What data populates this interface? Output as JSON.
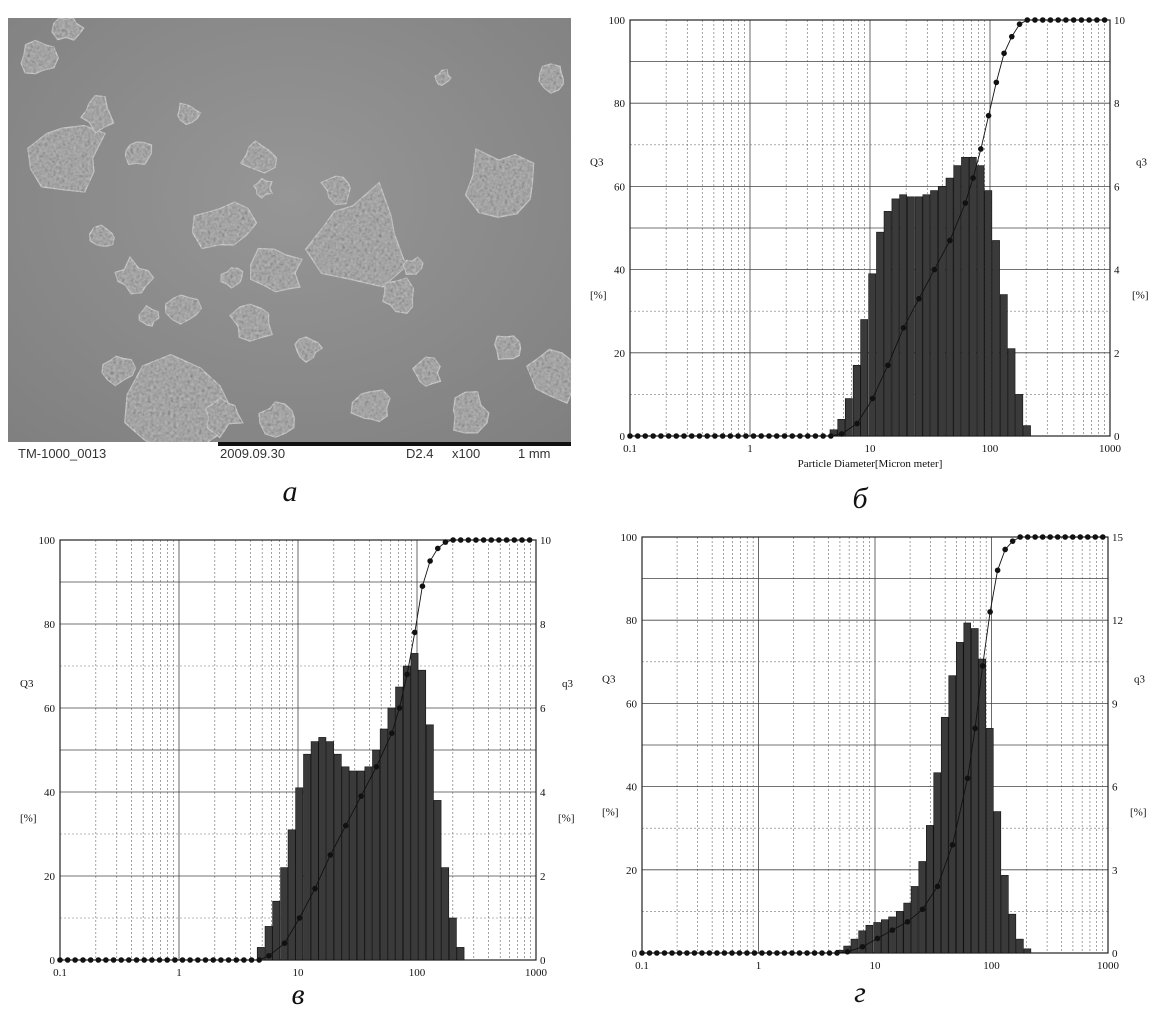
{
  "sem": {
    "id_label": "TM-1000_0013",
    "date_label": "2009.09.30",
    "mode_label": "D2.4",
    "mag_label": "x100",
    "scale_label": "1 mm"
  },
  "captions": [
    "а",
    "б",
    "в",
    "г"
  ],
  "chart_data": [
    {
      "panel": "б",
      "type": "bar",
      "xlabel": "Particle Diameter[Micron meter]",
      "ylabel_left": "Q3",
      "ylabel_left_unit": "[%]",
      "ylabel_right": "q3",
      "ylabel_right_unit": "[%]",
      "xscale": "log",
      "xlim": [
        0.1,
        1000
      ],
      "xticks": [
        "0.1",
        "1",
        "10",
        "100",
        "1000"
      ],
      "ylim_left": [
        0,
        100
      ],
      "yticks_left": [
        "0",
        "20",
        "40",
        "60",
        "80",
        "100"
      ],
      "ylim_right": [
        0,
        10
      ],
      "yticks_right": [
        "0",
        "2",
        "4",
        "6",
        "8",
        "10"
      ],
      "grid": true,
      "q3_bars": [
        {
          "x": 5.0,
          "v": 0.15
        },
        {
          "x": 5.8,
          "v": 0.4
        },
        {
          "x": 6.7,
          "v": 0.9
        },
        {
          "x": 7.8,
          "v": 1.7
        },
        {
          "x": 9.0,
          "v": 2.8
        },
        {
          "x": 10.5,
          "v": 3.9
        },
        {
          "x": 12.2,
          "v": 4.9
        },
        {
          "x": 14.1,
          "v": 5.4
        },
        {
          "x": 16.4,
          "v": 5.7
        },
        {
          "x": 19.0,
          "v": 5.8
        },
        {
          "x": 22.0,
          "v": 5.75
        },
        {
          "x": 25.6,
          "v": 5.75
        },
        {
          "x": 29.7,
          "v": 5.8
        },
        {
          "x": 34.4,
          "v": 5.9
        },
        {
          "x": 39.9,
          "v": 6.0
        },
        {
          "x": 46.3,
          "v": 6.2
        },
        {
          "x": 53.7,
          "v": 6.5
        },
        {
          "x": 62.3,
          "v": 6.7
        },
        {
          "x": 72.3,
          "v": 6.7
        },
        {
          "x": 83.9,
          "v": 6.5
        },
        {
          "x": 97.3,
          "v": 5.9
        },
        {
          "x": 112.9,
          "v": 4.7
        },
        {
          "x": 131.0,
          "v": 3.4
        },
        {
          "x": 151.9,
          "v": 2.1
        },
        {
          "x": 176.3,
          "v": 1.0
        },
        {
          "x": 204.5,
          "v": 0.25
        }
      ],
      "Q3_curve": {
        "x": [
          0.1,
          0.116,
          0.134,
          0.156,
          0.181,
          0.21,
          0.243,
          0.282,
          0.327,
          0.379,
          0.44,
          0.51,
          0.592,
          0.686,
          0.796,
          0.924,
          1.07,
          1.24,
          1.44,
          1.67,
          1.94,
          2.25,
          2.61,
          3.03,
          3.51,
          4.07,
          4.72,
          5.8,
          7.8,
          10.5,
          14.1,
          19.0,
          25.6,
          34.4,
          46.3,
          62.3,
          72.3,
          83.9,
          97.3,
          112.9,
          131.0,
          151.9,
          176.3,
          204.5,
          237,
          275,
          319,
          370,
          429,
          498,
          578,
          670,
          778,
          902
        ],
        "y": [
          0,
          0,
          0,
          0,
          0,
          0,
          0,
          0,
          0,
          0,
          0,
          0,
          0,
          0,
          0,
          0,
          0,
          0,
          0,
          0,
          0,
          0,
          0,
          0,
          0,
          0,
          0,
          0.5,
          3,
          9,
          17,
          26,
          33,
          40,
          47,
          56,
          62,
          69,
          77,
          85,
          92,
          96,
          99,
          100,
          100,
          100,
          100,
          100,
          100,
          100,
          100,
          100,
          100,
          100
        ]
      }
    },
    {
      "panel": "в",
      "type": "bar",
      "xlabel": "Particle Diameter[Micron meter]",
      "ylabel_left": "Q3",
      "ylabel_left_unit": "[%]",
      "ylabel_right": "q3",
      "ylabel_right_unit": "[%]",
      "xscale": "log",
      "xlim": [
        0.1,
        1000
      ],
      "xticks": [
        "0.1",
        "1",
        "10",
        "100",
        "1000"
      ],
      "ylim_left": [
        0,
        100
      ],
      "yticks_left": [
        "0",
        "20",
        "40",
        "60",
        "80",
        "100"
      ],
      "ylim_right": [
        0,
        10
      ],
      "yticks_right": [
        "0",
        "2",
        "4",
        "6",
        "8",
        "10"
      ],
      "grid": true,
      "q3_bars": [
        {
          "x": 4.9,
          "v": 0.3
        },
        {
          "x": 5.7,
          "v": 0.8
        },
        {
          "x": 6.6,
          "v": 1.4
        },
        {
          "x": 7.7,
          "v": 2.2
        },
        {
          "x": 8.9,
          "v": 3.1
        },
        {
          "x": 10.3,
          "v": 4.1
        },
        {
          "x": 12.0,
          "v": 4.9
        },
        {
          "x": 13.9,
          "v": 5.2
        },
        {
          "x": 16.1,
          "v": 5.3
        },
        {
          "x": 18.7,
          "v": 5.2
        },
        {
          "x": 21.7,
          "v": 4.9
        },
        {
          "x": 25.2,
          "v": 4.6
        },
        {
          "x": 29.2,
          "v": 4.5
        },
        {
          "x": 33.9,
          "v": 4.5
        },
        {
          "x": 39.3,
          "v": 4.6
        },
        {
          "x": 45.6,
          "v": 5.0
        },
        {
          "x": 52.9,
          "v": 5.5
        },
        {
          "x": 61.4,
          "v": 6.0
        },
        {
          "x": 71.2,
          "v": 6.5
        },
        {
          "x": 82.6,
          "v": 7.0
        },
        {
          "x": 95.8,
          "v": 7.3
        },
        {
          "x": 111.1,
          "v": 6.9
        },
        {
          "x": 128.9,
          "v": 5.6
        },
        {
          "x": 149.5,
          "v": 3.8
        },
        {
          "x": 173.4,
          "v": 2.2
        },
        {
          "x": 201.1,
          "v": 1.0
        },
        {
          "x": 233.3,
          "v": 0.3
        }
      ],
      "Q3_curve": {
        "x": [
          0.1,
          0.116,
          0.134,
          0.156,
          0.181,
          0.21,
          0.243,
          0.282,
          0.327,
          0.379,
          0.44,
          0.51,
          0.592,
          0.686,
          0.796,
          0.924,
          1.07,
          1.24,
          1.44,
          1.67,
          1.94,
          2.25,
          2.61,
          3.03,
          3.51,
          4.07,
          4.72,
          5.7,
          7.7,
          10.3,
          13.9,
          18.7,
          25.2,
          33.9,
          45.6,
          61.4,
          71.2,
          82.6,
          95.8,
          111.1,
          128.9,
          149.5,
          173.4,
          201.1,
          233,
          270,
          313,
          363,
          421,
          488,
          566,
          657,
          762,
          884
        ],
        "y": [
          0,
          0,
          0,
          0,
          0,
          0,
          0,
          0,
          0,
          0,
          0,
          0,
          0,
          0,
          0,
          0,
          0,
          0,
          0,
          0,
          0,
          0,
          0,
          0,
          0,
          0,
          0,
          1,
          4,
          10,
          17,
          25,
          32,
          39,
          46,
          54,
          60,
          68,
          78,
          89,
          95,
          98,
          99.5,
          100,
          100,
          100,
          100,
          100,
          100,
          100,
          100,
          100,
          100,
          100
        ]
      }
    },
    {
      "panel": "г",
      "type": "bar",
      "xlabel": "Particle Diameter[Micron meter]",
      "ylabel_left": "Q3",
      "ylabel_left_unit": "[%]",
      "ylabel_right": "q3",
      "ylabel_right_unit": "[%]",
      "xscale": "log",
      "xlim": [
        0.1,
        1000
      ],
      "xticks": [
        "0.1",
        "1",
        "10",
        "100",
        "1000"
      ],
      "ylim_left": [
        0,
        100
      ],
      "yticks_left": [
        "0",
        "20",
        "40",
        "60",
        "80",
        "100"
      ],
      "ylim_right": [
        0,
        15
      ],
      "yticks_right": [
        "0",
        "3",
        "6",
        "9",
        "12",
        "15"
      ],
      "grid": true,
      "q3_bars": [
        {
          "x": 5.0,
          "v": 0.1
        },
        {
          "x": 5.8,
          "v": 0.25
        },
        {
          "x": 6.7,
          "v": 0.5
        },
        {
          "x": 7.8,
          "v": 0.8
        },
        {
          "x": 9.0,
          "v": 1.0
        },
        {
          "x": 10.5,
          "v": 1.1
        },
        {
          "x": 12.2,
          "v": 1.2
        },
        {
          "x": 14.1,
          "v": 1.3
        },
        {
          "x": 16.4,
          "v": 1.5
        },
        {
          "x": 19.0,
          "v": 1.8
        },
        {
          "x": 22.0,
          "v": 2.4
        },
        {
          "x": 25.6,
          "v": 3.3
        },
        {
          "x": 29.7,
          "v": 4.6
        },
        {
          "x": 34.4,
          "v": 6.5
        },
        {
          "x": 39.9,
          "v": 8.5
        },
        {
          "x": 46.3,
          "v": 10.0
        },
        {
          "x": 53.7,
          "v": 11.2
        },
        {
          "x": 62.3,
          "v": 11.9
        },
        {
          "x": 72.3,
          "v": 11.7
        },
        {
          "x": 83.9,
          "v": 10.6
        },
        {
          "x": 97.3,
          "v": 8.1
        },
        {
          "x": 112.9,
          "v": 5.1
        },
        {
          "x": 131.0,
          "v": 2.8
        },
        {
          "x": 151.9,
          "v": 1.4
        },
        {
          "x": 176.3,
          "v": 0.5
        },
        {
          "x": 204.5,
          "v": 0.15
        }
      ],
      "Q3_curve": {
        "x": [
          0.1,
          0.116,
          0.134,
          0.156,
          0.181,
          0.21,
          0.243,
          0.282,
          0.327,
          0.379,
          0.44,
          0.51,
          0.592,
          0.686,
          0.796,
          0.924,
          1.07,
          1.24,
          1.44,
          1.67,
          1.94,
          2.25,
          2.61,
          3.03,
          3.51,
          4.07,
          4.72,
          5.8,
          7.8,
          10.5,
          14.1,
          19.0,
          25.6,
          34.4,
          46.3,
          62.3,
          72.3,
          83.9,
          97.3,
          112.9,
          131.0,
          151.9,
          176.3,
          204.5,
          237,
          275,
          319,
          370,
          429,
          498,
          578,
          670,
          778,
          902
        ],
        "y": [
          0,
          0,
          0,
          0,
          0,
          0,
          0,
          0,
          0,
          0,
          0,
          0,
          0,
          0,
          0,
          0,
          0,
          0,
          0,
          0,
          0,
          0,
          0,
          0,
          0,
          0,
          0,
          0.3,
          1.5,
          3.5,
          5.5,
          7.5,
          10.5,
          16,
          26,
          42,
          54,
          69,
          82,
          92,
          97,
          99,
          100,
          100,
          100,
          100,
          100,
          100,
          100,
          100,
          100,
          100,
          100,
          100
        ]
      }
    }
  ]
}
